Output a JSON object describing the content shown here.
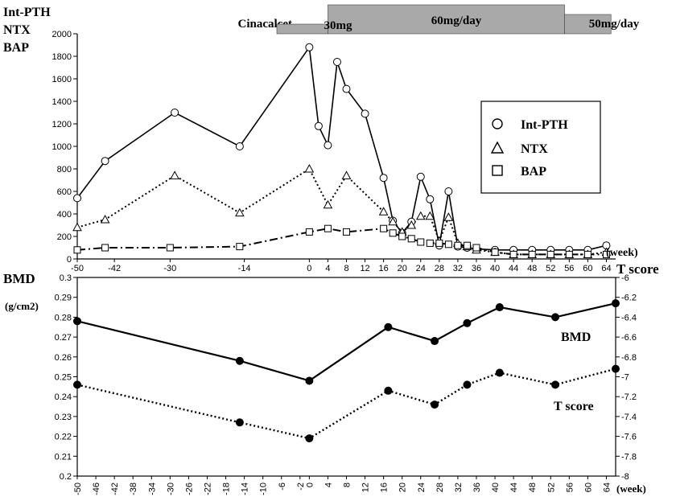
{
  "chart_data": [
    {
      "type": "line",
      "panel": "top",
      "ylabel_lines": [
        "Int-PTH",
        "NTX",
        "BAP"
      ],
      "xunit": "(week)",
      "xlim": [
        -50,
        66
      ],
      "ylim": [
        0,
        2000
      ],
      "y_ticks": [
        0,
        200,
        400,
        600,
        800,
        1000,
        1200,
        1400,
        1600,
        1800,
        2000
      ],
      "x_ticks": [
        -50,
        -42,
        -30,
        -14,
        0,
        4,
        8,
        12,
        16,
        20,
        24,
        28,
        32,
        36,
        40,
        44,
        48,
        52,
        56,
        60,
        64
      ],
      "treatment": {
        "label": "Cinacalcet",
        "phases": [
          {
            "label": "30mg",
            "start": -7,
            "end": 4
          },
          {
            "label": "60mg/day",
            "start": 4,
            "end": 55
          },
          {
            "label": "50mg/day",
            "start": 55,
            "end": 65
          }
        ]
      },
      "legend": {
        "position": "right",
        "entries": [
          "Int-PTH",
          "NTX",
          "BAP"
        ]
      },
      "series": [
        {
          "name": "Int-PTH",
          "marker": "circle",
          "line": "solid",
          "x": [
            -50,
            -44,
            -29,
            -15,
            0,
            2,
            4,
            6,
            8,
            12,
            16,
            18,
            20,
            22,
            24,
            26,
            28,
            30,
            32,
            34,
            36,
            40,
            44,
            48,
            52,
            56,
            60,
            64
          ],
          "y": [
            540,
            870,
            1300,
            1000,
            1880,
            1180,
            1010,
            1750,
            1510,
            1290,
            720,
            340,
            230,
            330,
            730,
            530,
            120,
            600,
            110,
            100,
            90,
            80,
            80,
            80,
            80,
            80,
            80,
            120
          ]
        },
        {
          "name": "NTX",
          "marker": "triangle",
          "line": "dotted",
          "x": [
            -50,
            -44,
            -29,
            -15,
            0,
            4,
            8,
            16,
            18,
            20,
            22,
            24,
            26,
            28,
            30,
            32,
            34,
            36,
            40,
            44,
            48,
            52,
            56,
            60,
            64
          ],
          "y": [
            280,
            350,
            740,
            410,
            800,
            480,
            740,
            420,
            330,
            240,
            300,
            380,
            380,
            160,
            370,
            140,
            110,
            80,
            60,
            40,
            40,
            40,
            40,
            40,
            60
          ]
        },
        {
          "name": "BAP",
          "marker": "square",
          "line": "dash-dot",
          "x": [
            -50,
            -44,
            -30,
            -15,
            0,
            4,
            8,
            16,
            18,
            20,
            22,
            24,
            26,
            28,
            30,
            32,
            34,
            36,
            40,
            44,
            48,
            52,
            56,
            60,
            64
          ],
          "y": [
            80,
            100,
            100,
            110,
            240,
            270,
            240,
            270,
            230,
            200,
            180,
            150,
            140,
            140,
            130,
            120,
            120,
            100,
            60,
            40,
            40,
            40,
            40,
            40,
            40
          ]
        }
      ]
    },
    {
      "type": "line",
      "panel": "bottom",
      "ylabel": "BMD",
      "yunit": "(g/cm2)",
      "y2label": "T score",
      "xunit": "(week)",
      "xlim": [
        -50,
        66
      ],
      "ylim": [
        0.2,
        0.3
      ],
      "y2lim": [
        -8,
        -6
      ],
      "y_ticks": [
        0.2,
        0.21,
        0.22,
        0.23,
        0.24,
        0.25,
        0.26,
        0.27,
        0.28,
        0.29,
        0.3
      ],
      "y2_ticks": [
        -8,
        -7.8,
        -7.6,
        -7.4,
        -7.2,
        -7,
        -6.8,
        -6.6,
        -6.4,
        -6.2,
        -6
      ],
      "x_ticks": [
        -50,
        -46,
        -42,
        -38,
        -34,
        -30,
        -26,
        -22,
        -18,
        -14,
        -10,
        -6,
        -2,
        0,
        4,
        8,
        12,
        16,
        20,
        24,
        28,
        32,
        36,
        40,
        44,
        48,
        52,
        56,
        60,
        64
      ],
      "series": [
        {
          "name": "BMD",
          "axis": "left",
          "line": "solid",
          "marker": "filled-circle",
          "x": [
            -50,
            -15,
            0,
            17,
            27,
            34,
            41,
            53,
            66
          ],
          "y": [
            0.278,
            0.258,
            0.248,
            0.275,
            0.268,
            0.277,
            0.285,
            0.28,
            0.287
          ]
        },
        {
          "name": "T score",
          "axis": "right",
          "line": "dotted",
          "marker": "filled-circle",
          "x": [
            -50,
            -15,
            0,
            17,
            27,
            34,
            41,
            53,
            66
          ],
          "y": [
            -7.08,
            -7.46,
            -7.62,
            -7.14,
            -7.28,
            -7.08,
            -6.96,
            -7.08,
            -6.92
          ]
        }
      ]
    }
  ]
}
